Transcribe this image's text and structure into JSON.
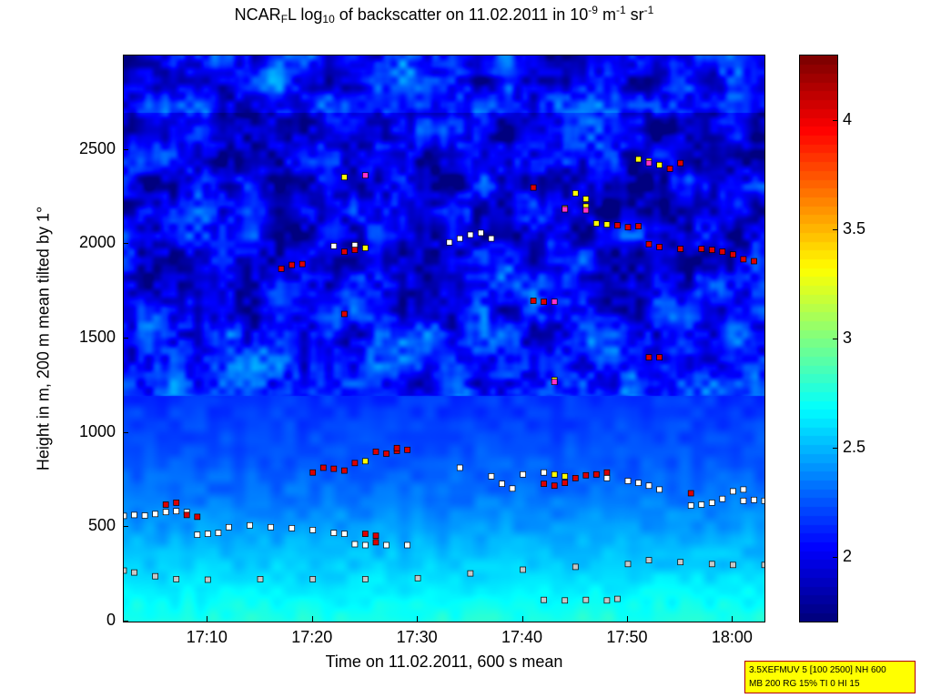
{
  "title": {
    "prefix": "NCAR",
    "sub1": "F",
    "mid": "L log",
    "sub2": "10",
    "rest": " of backscatter on 11.02.2011 in 10",
    "sup1": "-9",
    "unit1": " m",
    "sup2": "-1",
    "unit2": " sr",
    "sup3": "-1"
  },
  "info_box": {
    "line1": "3.5XEFMUV 5 [100 2500] NH 600",
    "line2": "MB 200 RG 15% TI 0 HI 15"
  },
  "colors": {
    "colormap": "jet",
    "info_box_bg": "#ffff00",
    "info_box_border": "#b00000"
  },
  "chart_data": {
    "type": "heatmap",
    "title": "NCAR_F L log_10 of backscatter on 11.02.2011 in 10^-9 m^-1 sr^-1",
    "xlabel": "Time on 11.02.2011, 600 s mean",
    "ylabel": "Height in m, 200 m mean tilted by 1°",
    "xlim": [
      "17:02",
      "18:03"
    ],
    "ylim": [
      0,
      3000
    ],
    "x_ticks": [
      "17:10",
      "17:20",
      "17:30",
      "17:40",
      "17:50",
      "18:00"
    ],
    "y_ticks": [
      0,
      500,
      1000,
      1500,
      2000,
      2500
    ],
    "colorbar": {
      "colormap": "jet",
      "clim": [
        1.7,
        4.3
      ],
      "ticks": [
        2,
        2.5,
        3,
        3.5,
        4
      ]
    },
    "marker_groups": [
      {
        "color": "#ffffff",
        "points": [
          [
            "17:02",
            560
          ],
          [
            "17:03",
            565
          ],
          [
            "17:04",
            562
          ],
          [
            "17:05",
            570
          ],
          [
            "17:06",
            580
          ],
          [
            "17:07",
            585
          ],
          [
            "17:08",
            580
          ],
          [
            "17:09",
            460
          ],
          [
            "17:10",
            465
          ],
          [
            "17:11",
            470
          ],
          [
            "17:12",
            500
          ],
          [
            "17:14",
            510
          ],
          [
            "17:16",
            500
          ],
          [
            "17:18",
            495
          ],
          [
            "17:20",
            485
          ],
          [
            "17:22",
            470
          ],
          [
            "17:23",
            465
          ],
          [
            "17:25",
            405
          ],
          [
            "17:27",
            405
          ],
          [
            "17:29",
            405
          ],
          [
            "17:24",
            410
          ],
          [
            "17:33",
            2010
          ],
          [
            "17:34",
            2030
          ],
          [
            "17:35",
            2050
          ],
          [
            "17:36",
            2060
          ],
          [
            "17:37",
            2030
          ],
          [
            "17:34",
            815
          ],
          [
            "17:37",
            770
          ],
          [
            "17:38",
            730
          ],
          [
            "17:39",
            705
          ],
          [
            "17:40",
            780
          ],
          [
            "17:42",
            790
          ],
          [
            "17:47",
            780
          ],
          [
            "17:48",
            760
          ],
          [
            "17:50",
            745
          ],
          [
            "17:51",
            735
          ],
          [
            "17:52",
            720
          ],
          [
            "17:53",
            700
          ],
          [
            "17:56",
            615
          ],
          [
            "17:57",
            620
          ],
          [
            "17:58",
            630
          ],
          [
            "17:59",
            650
          ],
          [
            "18:00",
            690
          ],
          [
            "18:01",
            700
          ],
          [
            "18:01",
            640
          ],
          [
            "18:02",
            645
          ],
          [
            "18:03",
            640
          ],
          [
            "17:22",
            1990
          ],
          [
            "17:24",
            1995
          ]
        ]
      },
      {
        "color": "#c7c7c7",
        "points": [
          [
            "17:02",
            270
          ],
          [
            "17:03",
            260
          ],
          [
            "17:05",
            240
          ],
          [
            "17:07",
            225
          ],
          [
            "17:10",
            222
          ],
          [
            "17:15",
            225
          ],
          [
            "17:20",
            225
          ],
          [
            "17:25",
            225
          ],
          [
            "17:30",
            230
          ],
          [
            "17:35",
            255
          ],
          [
            "17:40",
            275
          ],
          [
            "17:45",
            290
          ],
          [
            "17:50",
            305
          ],
          [
            "17:52",
            325
          ],
          [
            "17:55",
            315
          ],
          [
            "17:58",
            305
          ],
          [
            "18:00",
            300
          ],
          [
            "18:03",
            300
          ],
          [
            "17:42",
            115
          ],
          [
            "17:44",
            112
          ],
          [
            "17:46",
            115
          ],
          [
            "17:48",
            112
          ],
          [
            "17:49",
            120
          ]
        ]
      },
      {
        "color": "#dd0000",
        "points": [
          [
            "17:06",
            620
          ],
          [
            "17:07",
            630
          ],
          [
            "17:08",
            565
          ],
          [
            "17:09",
            555
          ],
          [
            "17:17",
            1870
          ],
          [
            "17:18",
            1890
          ],
          [
            "17:19",
            1895
          ],
          [
            "17:20",
            790
          ],
          [
            "17:21",
            815
          ],
          [
            "17:22",
            810
          ],
          [
            "17:23",
            800
          ],
          [
            "17:24",
            840
          ],
          [
            "17:23",
            1630
          ],
          [
            "17:23",
            1960
          ],
          [
            "17:24",
            1970
          ],
          [
            "17:25",
            465
          ],
          [
            "17:26",
            455
          ],
          [
            "17:26",
            420
          ],
          [
            "17:26",
            900
          ],
          [
            "17:27",
            890
          ],
          [
            "17:28",
            905
          ],
          [
            "17:28",
            920
          ],
          [
            "17:29",
            910
          ],
          [
            "17:41",
            2300
          ],
          [
            "17:41",
            1700
          ],
          [
            "17:42",
            1695
          ],
          [
            "17:42",
            730
          ],
          [
            "17:43",
            720
          ],
          [
            "17:44",
            735
          ],
          [
            "17:45",
            760
          ],
          [
            "17:46",
            775
          ],
          [
            "17:47",
            780
          ],
          [
            "17:48",
            790
          ],
          [
            "17:49",
            2100
          ],
          [
            "17:50",
            2090
          ],
          [
            "17:51",
            2095
          ],
          [
            "17:52",
            1400
          ],
          [
            "17:53",
            1400
          ],
          [
            "17:52",
            2000
          ],
          [
            "17:53",
            1985
          ],
          [
            "17:54",
            2400
          ],
          [
            "17:55",
            2430
          ],
          [
            "17:55",
            1975
          ],
          [
            "17:57",
            1975
          ],
          [
            "17:58",
            1970
          ],
          [
            "17:59",
            1960
          ],
          [
            "18:00",
            1945
          ],
          [
            "18:01",
            1920
          ],
          [
            "18:02",
            1910
          ],
          [
            "17:56",
            680
          ]
        ]
      },
      {
        "color": "#ffff00",
        "points": [
          [
            "17:23",
            2355
          ],
          [
            "17:25",
            850
          ],
          [
            "17:25",
            1980
          ],
          [
            "17:43",
            780
          ],
          [
            "17:44",
            770
          ],
          [
            "17:43",
            1280
          ],
          [
            "17:44",
            2190
          ],
          [
            "17:45",
            2270
          ],
          [
            "17:46",
            2240
          ],
          [
            "17:46",
            2200
          ],
          [
            "17:47",
            2110
          ],
          [
            "17:48",
            2105
          ],
          [
            "17:51",
            2450
          ],
          [
            "17:52",
            2440
          ],
          [
            "17:53",
            2420
          ]
        ]
      },
      {
        "color": "#ff33cc",
        "points": [
          [
            "17:25",
            2365
          ],
          [
            "17:43",
            1695
          ],
          [
            "17:43",
            1270
          ],
          [
            "17:44",
            2185
          ],
          [
            "17:46",
            2180
          ],
          [
            "17:52",
            2430
          ]
        ]
      }
    ]
  }
}
